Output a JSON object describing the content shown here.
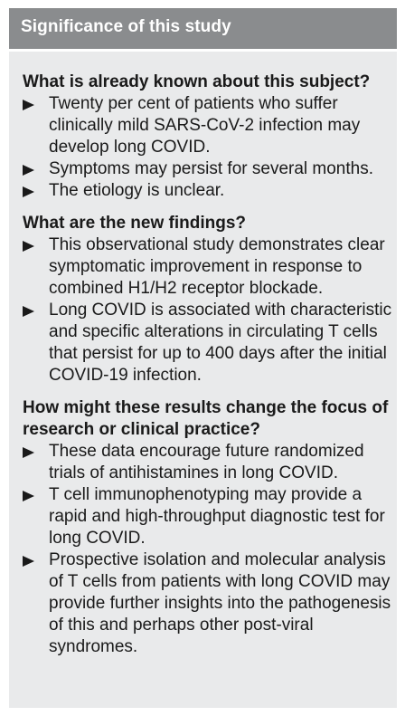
{
  "header": {
    "title": "Significance of this study"
  },
  "sections": [
    {
      "title": "What is already known about this subject?",
      "points": [
        "Twenty per cent of patients who suffer clinically mild SARS-CoV-2 infection may develop long COVID.",
        "Symptoms may persist for several months.",
        "The etiology is unclear."
      ]
    },
    {
      "title": "What are the new findings?",
      "points": [
        "This observational study demonstrates clear symptomatic improvement in response to combined H1/H2 receptor blockade.",
        "Long COVID is associated with characteristic and specific alterations in circulating T cells that persist for up to 400 days after the initial COVID-19 infection."
      ]
    },
    {
      "title": "How might these results change the focus of research or clinical practice?",
      "points": [
        "These data encourage future randomized trials of antihistamines in long COVID.",
        "T cell immunophenotyping may provide a rapid and high-throughput diagnostic test for long COVID.",
        "Prospective isolation and molecular analysis of T cells from patients with long COVID may provide further insights into the pathogenesis of this and perhaps other post-viral syndromes."
      ]
    }
  ],
  "icons": {
    "bullet": "triangle-right-icon"
  }
}
